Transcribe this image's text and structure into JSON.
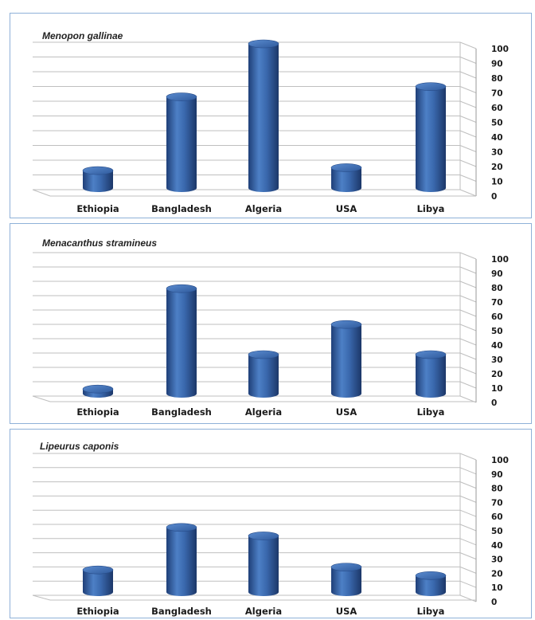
{
  "chart_data": [
    {
      "type": "bar",
      "title": "Menopon gallinae",
      "categories": [
        "Ethiopia",
        "Bangladesh",
        "Algeria",
        "USA",
        "Libya"
      ],
      "values": [
        14,
        64,
        100,
        16,
        71
      ],
      "ylim": [
        0,
        100
      ],
      "yticks": [
        "0",
        "10",
        "20",
        "30",
        "40",
        "50",
        "60",
        "70",
        "80",
        "90",
        "100"
      ],
      "grid": true,
      "bar_color": "#3f6fb5"
    },
    {
      "type": "bar",
      "title": "Menacanthus stramineus",
      "categories": [
        "Ethiopia",
        "Bangladesh",
        "Algeria",
        "USA",
        "Libya"
      ],
      "values": [
        6,
        76,
        30,
        51,
        30
      ],
      "ylim": [
        0,
        100
      ],
      "yticks": [
        "0",
        "10",
        "20",
        "30",
        "40",
        "50",
        "60",
        "70",
        "80",
        "90",
        "100"
      ],
      "grid": true,
      "bar_color": "#3f6fb5"
    },
    {
      "type": "bar",
      "title": "Lipeurus caponis",
      "categories": [
        "Ethiopia",
        "Bangladesh",
        "Algeria",
        "USA",
        "Libya"
      ],
      "values": [
        19,
        49,
        43,
        21,
        15
      ],
      "ylim": [
        0,
        100
      ],
      "yticks": [
        "0",
        "10",
        "20",
        "30",
        "40",
        "50",
        "60",
        "70",
        "80",
        "90",
        "100"
      ],
      "grid": true,
      "bar_color": "#3f6fb5"
    }
  ]
}
